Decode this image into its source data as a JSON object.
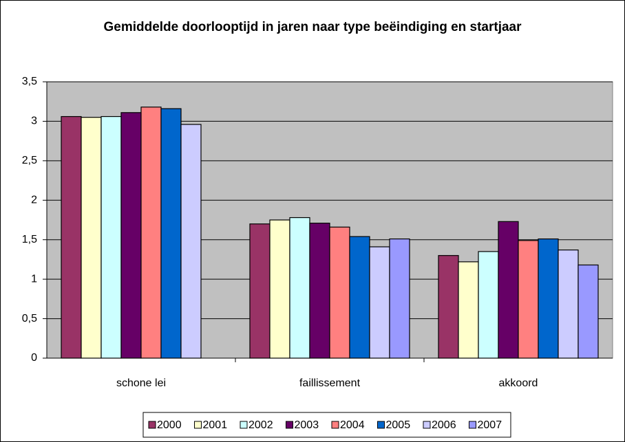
{
  "chart_data": {
    "type": "bar",
    "title": "Gemiddelde doorlooptijd in jaren naar type beëindiging en startjaar",
    "categories": [
      "schone lei",
      "faillissement",
      "akkoord"
    ],
    "series": [
      {
        "name": "2000",
        "color": "#993366",
        "values": [
          3.06,
          1.7,
          1.3
        ]
      },
      {
        "name": "2001",
        "color": "#FFFFCC",
        "values": [
          3.05,
          1.75,
          1.22
        ]
      },
      {
        "name": "2002",
        "color": "#CCFFFF",
        "values": [
          3.06,
          1.78,
          1.35
        ]
      },
      {
        "name": "2003",
        "color": "#660066",
        "values": [
          3.11,
          1.71,
          1.73
        ]
      },
      {
        "name": "2004",
        "color": "#FF8080",
        "values": [
          3.18,
          1.66,
          1.49
        ]
      },
      {
        "name": "2005",
        "color": "#0066CC",
        "values": [
          3.16,
          1.54,
          1.51
        ]
      },
      {
        "name": "2006",
        "color": "#CCCCFF",
        "values": [
          2.96,
          1.41,
          1.37
        ]
      },
      {
        "name": "2007",
        "color": "#9999FF",
        "values": [
          null,
          1.51,
          1.18
        ]
      }
    ],
    "ylim": [
      0,
      3.5
    ],
    "yticks": [
      0,
      {
        "value": 0.5,
        "label": "0,5"
      },
      1,
      {
        "value": 1.5,
        "label": "1,5"
      },
      2,
      {
        "value": 2.5,
        "label": "2,5"
      },
      3,
      {
        "value": 3.5,
        "label": "3,5"
      }
    ],
    "grid": true,
    "legend": "bottom",
    "plot_background": "#C0C0C0"
  }
}
